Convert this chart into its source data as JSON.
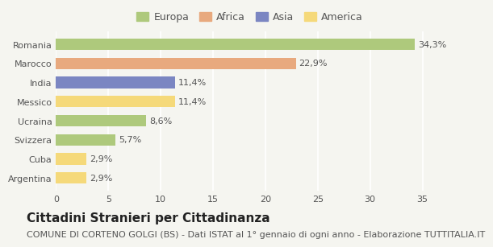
{
  "categories": [
    "Romania",
    "Marocco",
    "India",
    "Messico",
    "Ucraina",
    "Svizzera",
    "Cuba",
    "Argentina"
  ],
  "values": [
    34.3,
    22.9,
    11.4,
    11.4,
    8.6,
    5.7,
    2.9,
    2.9
  ],
  "labels": [
    "34,3%",
    "22,9%",
    "11,4%",
    "11,4%",
    "8,6%",
    "5,7%",
    "2,9%",
    "2,9%"
  ],
  "colors": [
    "#aec97c",
    "#e8a97e",
    "#7b86c2",
    "#f5d97a",
    "#aec97c",
    "#aec97c",
    "#f5d97a",
    "#f5d97a"
  ],
  "continent": [
    "Europa",
    "Africa",
    "Asia",
    "America",
    "Europa",
    "Europa",
    "America",
    "America"
  ],
  "legend_labels": [
    "Europa",
    "Africa",
    "Asia",
    "America"
  ],
  "legend_colors": [
    "#aec97c",
    "#e8a97e",
    "#7b86c2",
    "#f5d97a"
  ],
  "xlim": [
    0,
    37
  ],
  "xticks": [
    0,
    5,
    10,
    15,
    20,
    25,
    30,
    35
  ],
  "title": "Cittadini Stranieri per Cittadinanza",
  "subtitle": "COMUNE DI CORTENO GOLGI (BS) - Dati ISTAT al 1° gennaio di ogni anno - Elaborazione TUTTITALIA.IT",
  "background_color": "#f5f5f0",
  "grid_color": "#ffffff",
  "bar_height": 0.6,
  "title_fontsize": 11,
  "subtitle_fontsize": 8,
  "label_fontsize": 8,
  "tick_fontsize": 8,
  "legend_fontsize": 9
}
